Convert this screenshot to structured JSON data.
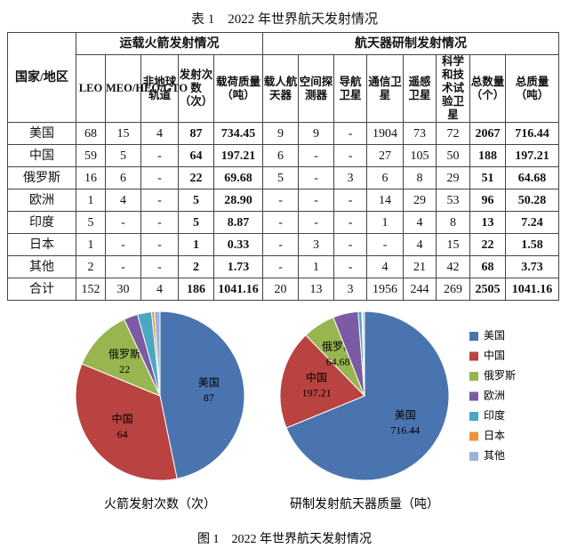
{
  "table": {
    "title": "表 1　2022 年世界航天发射情况",
    "header_groups": [
      "国家/地区",
      "运载火箭发射情况",
      "航天器研制发射情况"
    ],
    "columns": [
      "LEO",
      "MEO/HEO/GTO",
      "非地球轨道",
      "发射次数（次）",
      "载荷质量（吨）",
      "载人航天器",
      "空间探测器",
      "导航卫星",
      "通信卫星",
      "遥感卫星",
      "科学和技术试验卫星",
      "总数量（个）",
      "总质量（吨）"
    ],
    "rows": [
      [
        "美国",
        "68",
        "15",
        "4",
        "87",
        "734.45",
        "9",
        "9",
        "-",
        "1904",
        "73",
        "72",
        "2067",
        "716.44"
      ],
      [
        "中国",
        "59",
        "5",
        "-",
        "64",
        "197.21",
        "6",
        "-",
        "-",
        "27",
        "105",
        "50",
        "188",
        "197.21"
      ],
      [
        "俄罗斯",
        "16",
        "6",
        "-",
        "22",
        "69.68",
        "5",
        "-",
        "3",
        "6",
        "8",
        "29",
        "51",
        "64.68"
      ],
      [
        "欧洲",
        "1",
        "4",
        "-",
        "5",
        "28.90",
        "-",
        "-",
        "-",
        "14",
        "29",
        "53",
        "96",
        "50.28"
      ],
      [
        "印度",
        "5",
        "-",
        "-",
        "5",
        "8.87",
        "-",
        "-",
        "-",
        "1",
        "4",
        "8",
        "13",
        "7.24"
      ],
      [
        "日本",
        "1",
        "-",
        "-",
        "1",
        "0.33",
        "-",
        "3",
        "-",
        "-",
        "4",
        "15",
        "22",
        "1.58"
      ],
      [
        "其他",
        "2",
        "-",
        "-",
        "2",
        "1.73",
        "-",
        "1",
        "-",
        "4",
        "21",
        "42",
        "68",
        "3.73"
      ],
      [
        "合计",
        "152",
        "30",
        "4",
        "186",
        "1041.16",
        "20",
        "13",
        "3",
        "1956",
        "244",
        "269",
        "2505",
        "1041.16"
      ]
    ]
  },
  "figure": {
    "caption": "图 1　2022 年世界航天发射情况",
    "legend": {
      "names": [
        "美国",
        "中国",
        "俄罗斯",
        "欧洲",
        "印度",
        "日本",
        "其他"
      ],
      "colors": [
        "#4a74b0",
        "#b84341",
        "#98b64f",
        "#7b5ba3",
        "#4aa8c3",
        "#f0923a",
        "#9bb3d8"
      ]
    },
    "charts": [
      {
        "type": "pie",
        "title": "火箭发射次数（次）",
        "values": [
          87,
          64,
          22,
          5,
          5,
          1,
          2
        ]
      },
      {
        "type": "pie",
        "title": "研制发射航天器质量（吨）",
        "values": [
          716.44,
          197.21,
          64.68,
          50.28,
          7.24,
          1.58,
          3.73
        ]
      }
    ]
  }
}
